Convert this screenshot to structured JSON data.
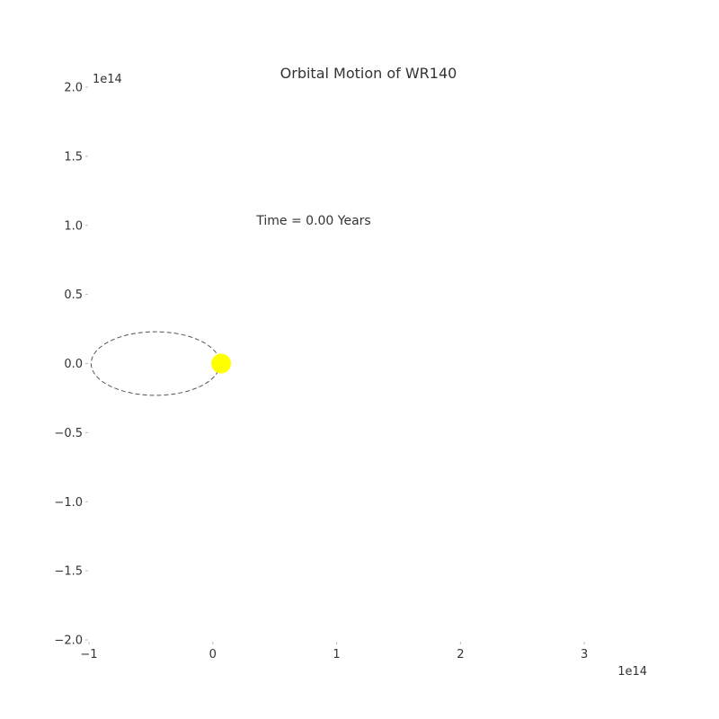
{
  "chart_data": {
    "type": "scatter",
    "title": "Orbital Motion of WR140",
    "annotation": "Time = 0.00 Years",
    "x_offset_label": "1e14",
    "y_offset_label": "1e14",
    "xlim": [
      -100000000000000.0,
      350000000000000.0
    ],
    "ylim": [
      -200000000000000.0,
      200000000000000.0
    ],
    "x_ticks": [
      -100000000000000.0,
      0,
      100000000000000.0,
      200000000000000.0,
      300000000000000.0
    ],
    "x_tick_labels": [
      "−1",
      "0",
      "1",
      "2",
      "3"
    ],
    "y_ticks": [
      200000000000000.0,
      150000000000000.0,
      100000000000000.0,
      50000000000000.0,
      0,
      -50000000000000.0,
      -100000000000000.0,
      -150000000000000.0,
      -200000000000000.0
    ],
    "y_tick_labels": [
      "2.0",
      "1.5",
      "1.0",
      "0.5",
      "0.0",
      "−0.5",
      "−1.0",
      "−1.5",
      "−2.0"
    ],
    "grid": false,
    "orbit": {
      "center_x": -47000000000000.0,
      "center_y": 0,
      "semi_major_axis": 52000000000000.0,
      "semi_minor_axis": 23000000000000.0,
      "line_style": "dashed",
      "color": "#555555"
    },
    "star": {
      "x": 6000000000000.0,
      "y": 0,
      "color": "#ffff00"
    }
  }
}
